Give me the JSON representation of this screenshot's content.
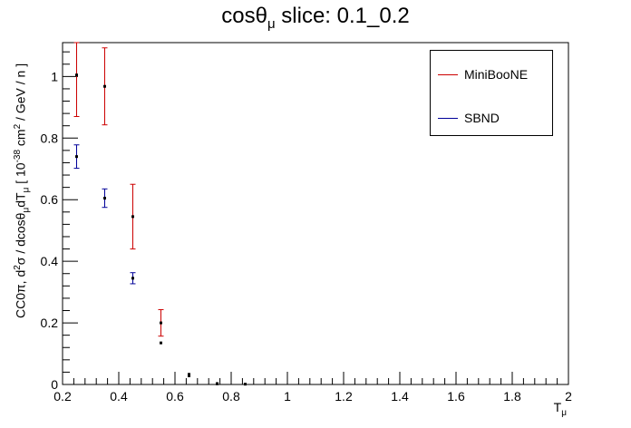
{
  "chart_data": {
    "type": "scatter",
    "title": "cosθ",
    "title_subscript": "μ",
    "title_suffix": " slice: 0.1_0.2",
    "xlabel": "T",
    "xlabel_subscript": "μ",
    "ylabel_parts": [
      "CC0π, d",
      "2",
      "σ / dcosθ",
      "μ",
      "dT",
      "μ",
      " [ 10",
      "-38",
      " cm",
      "2",
      " / GeV / n ]"
    ],
    "xlim": [
      0.2,
      2.0
    ],
    "ylim": [
      0.0,
      1.11
    ],
    "x_ticks": [
      "0.2",
      "0.4",
      "0.6",
      "0.8",
      "1",
      "1.2",
      "1.4",
      "1.6",
      "1.8",
      "2"
    ],
    "x_tick_values": [
      0.2,
      0.4,
      0.6,
      0.8,
      1.0,
      1.2,
      1.4,
      1.6,
      1.8,
      2.0
    ],
    "y_ticks": [
      "0",
      "0.2",
      "0.4",
      "0.6",
      "0.8",
      "1"
    ],
    "y_tick_values": [
      0.0,
      0.2,
      0.4,
      0.6,
      0.8,
      1.0
    ],
    "legend_position": "top-right",
    "series": [
      {
        "name": "MiniBooNE",
        "color": "#cc0000",
        "points": [
          {
            "x": 0.25,
            "y": 1.005,
            "err": 0.135
          },
          {
            "x": 0.35,
            "y": 0.968,
            "err": 0.125
          },
          {
            "x": 0.45,
            "y": 0.545,
            "err": 0.105
          },
          {
            "x": 0.55,
            "y": 0.2,
            "err": 0.043
          },
          {
            "x": 0.65,
            "y": 0.033,
            "err": 0.0
          },
          {
            "x": 0.75,
            "y": 0.003,
            "err": 0.0
          },
          {
            "x": 0.85,
            "y": 0.001,
            "err": 0.0
          }
        ]
      },
      {
        "name": "SBND",
        "color": "#000099",
        "points": [
          {
            "x": 0.25,
            "y": 0.74,
            "err": 0.038
          },
          {
            "x": 0.35,
            "y": 0.605,
            "err": 0.03
          },
          {
            "x": 0.45,
            "y": 0.345,
            "err": 0.018
          },
          {
            "x": 0.55,
            "y": 0.135,
            "err": 0.0
          },
          {
            "x": 0.65,
            "y": 0.028,
            "err": 0.0
          },
          {
            "x": 0.75,
            "y": 0.002,
            "err": 0.0
          }
        ]
      }
    ]
  }
}
